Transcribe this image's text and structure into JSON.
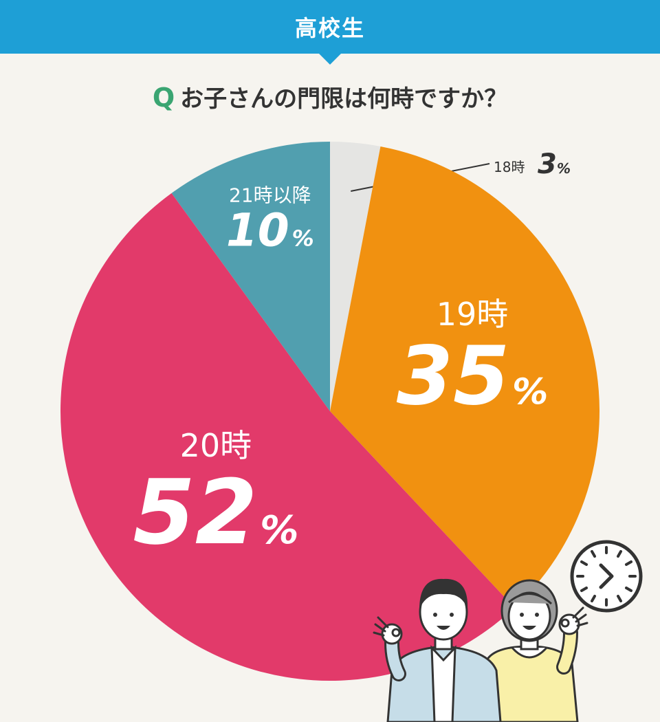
{
  "banner": {
    "title": "高校生"
  },
  "question": {
    "mark": "Q",
    "text": "お子さんの門限は何時ですか？"
  },
  "colors": {
    "banner": "#1e9fd6",
    "q_mark": "#3aa572",
    "slice_18": "#e5e5e3",
    "slice_19": "#f19110",
    "slice_20": "#e23a6a",
    "slice_21": "#519faf"
  },
  "icons": {
    "clock": "clock-icon",
    "people": "parents-ok-gesture-illustration"
  },
  "chart_data": {
    "type": "pie",
    "title": "お子さんの門限は何時ですか？",
    "slices": [
      {
        "label": "18時",
        "value": 3,
        "unit": "%",
        "color": "#e5e5e3"
      },
      {
        "label": "19時",
        "value": 35,
        "unit": "%",
        "color": "#f19110"
      },
      {
        "label": "20時",
        "value": 52,
        "unit": "%",
        "color": "#e23a6a"
      },
      {
        "label": "21時以降",
        "value": 10,
        "unit": "%",
        "color": "#519faf"
      }
    ]
  }
}
